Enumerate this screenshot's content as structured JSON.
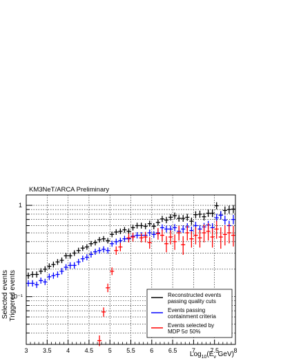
{
  "chart_data": {
    "type": "scatter",
    "title": "KM3NeT/ARCA Preliminary",
    "xlabel": "Log10(Eν GeV)",
    "ylabel_line1": "Selected events",
    "ylabel_line2": "Triggered events",
    "xlim": [
      3,
      8
    ],
    "ylim": [
      0.03,
      1.3
    ],
    "y_scale": "log",
    "grid": true,
    "x_ticks": [
      "3",
      "3.5",
      "4",
      "4.5",
      "5",
      "5.5",
      "6",
      "6.5",
      "7",
      "7.5",
      "8"
    ],
    "y_ticks": [
      "10⁻¹",
      "1"
    ],
    "legend_position": "bottom-right",
    "bin_width": 0.1,
    "series": [
      {
        "name": "Reconstructed events passing quality cuts",
        "color": "#000000",
        "points": [
          [
            3.05,
            0.17,
            0.006
          ],
          [
            3.15,
            0.175,
            0.006
          ],
          [
            3.25,
            0.175,
            0.006
          ],
          [
            3.35,
            0.19,
            0.006
          ],
          [
            3.45,
            0.2,
            0.006
          ],
          [
            3.55,
            0.215,
            0.007
          ],
          [
            3.65,
            0.225,
            0.007
          ],
          [
            3.75,
            0.24,
            0.007
          ],
          [
            3.85,
            0.25,
            0.007
          ],
          [
            3.95,
            0.28,
            0.008
          ],
          [
            4.05,
            0.28,
            0.008
          ],
          [
            4.15,
            0.3,
            0.008
          ],
          [
            4.25,
            0.32,
            0.009
          ],
          [
            4.35,
            0.34,
            0.009
          ],
          [
            4.45,
            0.35,
            0.009
          ],
          [
            4.55,
            0.38,
            0.01
          ],
          [
            4.65,
            0.39,
            0.01
          ],
          [
            4.75,
            0.42,
            0.011
          ],
          [
            4.85,
            0.43,
            0.011
          ],
          [
            4.95,
            0.41,
            0.011
          ],
          [
            5.05,
            0.48,
            0.013
          ],
          [
            5.15,
            0.51,
            0.014
          ],
          [
            5.25,
            0.52,
            0.014
          ],
          [
            5.35,
            0.54,
            0.015
          ],
          [
            5.45,
            0.52,
            0.015
          ],
          [
            5.55,
            0.57,
            0.017
          ],
          [
            5.65,
            0.6,
            0.018
          ],
          [
            5.75,
            0.6,
            0.018
          ],
          [
            5.85,
            0.59,
            0.018
          ],
          [
            5.95,
            0.63,
            0.02
          ],
          [
            6.05,
            0.59,
            0.02
          ],
          [
            6.15,
            0.65,
            0.022
          ],
          [
            6.25,
            0.71,
            0.024
          ],
          [
            6.35,
            0.69,
            0.025
          ],
          [
            6.45,
            0.74,
            0.027
          ],
          [
            6.55,
            0.77,
            0.028
          ],
          [
            6.65,
            0.72,
            0.028
          ],
          [
            6.75,
            0.72,
            0.03
          ],
          [
            6.85,
            0.74,
            0.032
          ],
          [
            6.95,
            0.67,
            0.033
          ],
          [
            7.05,
            0.79,
            0.035
          ],
          [
            7.15,
            0.8,
            0.037
          ],
          [
            7.25,
            0.75,
            0.038
          ],
          [
            7.35,
            0.82,
            0.04
          ],
          [
            7.45,
            0.82,
            0.043
          ],
          [
            7.55,
            0.99,
            0.045
          ],
          [
            7.65,
            0.78,
            0.047
          ],
          [
            7.75,
            0.88,
            0.05
          ],
          [
            7.85,
            0.9,
            0.052
          ],
          [
            7.95,
            0.91,
            0.055
          ]
        ]
      },
      {
        "name": "Events passing containment criteria",
        "color": "#0000ff",
        "points": [
          [
            3.05,
            0.14,
            0.005
          ],
          [
            3.15,
            0.14,
            0.005
          ],
          [
            3.25,
            0.135,
            0.005
          ],
          [
            3.35,
            0.15,
            0.005
          ],
          [
            3.45,
            0.145,
            0.005
          ],
          [
            3.55,
            0.165,
            0.006
          ],
          [
            3.65,
            0.17,
            0.006
          ],
          [
            3.75,
            0.175,
            0.006
          ],
          [
            3.85,
            0.19,
            0.007
          ],
          [
            3.95,
            0.21,
            0.007
          ],
          [
            4.05,
            0.22,
            0.008
          ],
          [
            4.15,
            0.22,
            0.008
          ],
          [
            4.25,
            0.24,
            0.008
          ],
          [
            4.35,
            0.26,
            0.009
          ],
          [
            4.45,
            0.27,
            0.009
          ],
          [
            4.55,
            0.29,
            0.01
          ],
          [
            4.65,
            0.31,
            0.01
          ],
          [
            4.75,
            0.32,
            0.011
          ],
          [
            4.85,
            0.33,
            0.011
          ],
          [
            4.95,
            0.32,
            0.011
          ],
          [
            5.05,
            0.38,
            0.012
          ],
          [
            5.15,
            0.4,
            0.013
          ],
          [
            5.25,
            0.41,
            0.013
          ],
          [
            5.35,
            0.43,
            0.014
          ],
          [
            5.45,
            0.43,
            0.015
          ],
          [
            5.55,
            0.46,
            0.016
          ],
          [
            5.65,
            0.47,
            0.017
          ],
          [
            5.75,
            0.47,
            0.017
          ],
          [
            5.85,
            0.47,
            0.018
          ],
          [
            5.95,
            0.5,
            0.019
          ],
          [
            6.05,
            0.48,
            0.02
          ],
          [
            6.15,
            0.5,
            0.021
          ],
          [
            6.25,
            0.57,
            0.022
          ],
          [
            6.35,
            0.55,
            0.023
          ],
          [
            6.45,
            0.55,
            0.025
          ],
          [
            6.55,
            0.57,
            0.026
          ],
          [
            6.65,
            0.52,
            0.026
          ],
          [
            6.75,
            0.55,
            0.028
          ],
          [
            6.85,
            0.58,
            0.03
          ],
          [
            6.95,
            0.53,
            0.03
          ],
          [
            7.05,
            0.6,
            0.032
          ],
          [
            7.15,
            0.55,
            0.033
          ],
          [
            7.25,
            0.58,
            0.035
          ],
          [
            7.35,
            0.61,
            0.037
          ],
          [
            7.45,
            0.57,
            0.04
          ],
          [
            7.55,
            0.73,
            0.042
          ],
          [
            7.65,
            0.78,
            0.045
          ],
          [
            7.75,
            0.69,
            0.048
          ],
          [
            7.85,
            0.6,
            0.05
          ],
          [
            7.95,
            0.7,
            0.052
          ]
        ]
      },
      {
        "name": "Events selected by MDP 5σ 50%",
        "color": "#ff0000",
        "points": [
          [
            4.75,
            0.033,
            0.003
          ],
          [
            4.85,
            0.068,
            0.005
          ],
          [
            4.95,
            0.125,
            0.008
          ],
          [
            5.05,
            0.19,
            0.01
          ],
          [
            5.15,
            0.32,
            0.02
          ],
          [
            5.25,
            0.35,
            0.022
          ],
          [
            5.45,
            0.44,
            0.03
          ],
          [
            5.55,
            0.45,
            0.03
          ],
          [
            5.75,
            0.44,
            0.03
          ],
          [
            5.85,
            0.45,
            0.04
          ],
          [
            5.95,
            0.39,
            0.04
          ],
          [
            6.15,
            0.49,
            0.05
          ],
          [
            6.25,
            0.47,
            0.05
          ],
          [
            6.35,
            0.38,
            0.06
          ],
          [
            6.45,
            0.45,
            0.06
          ],
          [
            6.55,
            0.4,
            0.06
          ],
          [
            6.65,
            0.5,
            0.07
          ],
          [
            6.75,
            0.37,
            0.07
          ],
          [
            6.85,
            0.5,
            0.07
          ],
          [
            6.95,
            0.43,
            0.07
          ],
          [
            7.05,
            0.47,
            0.08
          ],
          [
            7.15,
            0.44,
            0.08
          ],
          [
            7.25,
            0.5,
            0.09
          ],
          [
            7.35,
            0.52,
            0.09
          ],
          [
            7.45,
            0.45,
            0.09
          ],
          [
            7.55,
            0.55,
            0.1
          ],
          [
            7.65,
            0.45,
            0.1
          ],
          [
            7.75,
            0.48,
            0.1
          ],
          [
            7.85,
            0.5,
            0.1
          ],
          [
            7.95,
            0.47,
            0.1
          ]
        ]
      }
    ]
  },
  "legend": {
    "items": [
      {
        "line1": "Reconstructed events",
        "line2": "passing quality cuts",
        "color": "#000000"
      },
      {
        "line1": "Events passing",
        "line2": "containment criteria",
        "color": "#0000ff"
      },
      {
        "line1": "Events selected by",
        "line2": "MDP 5σ 50%",
        "color": "#ff0000"
      }
    ]
  }
}
